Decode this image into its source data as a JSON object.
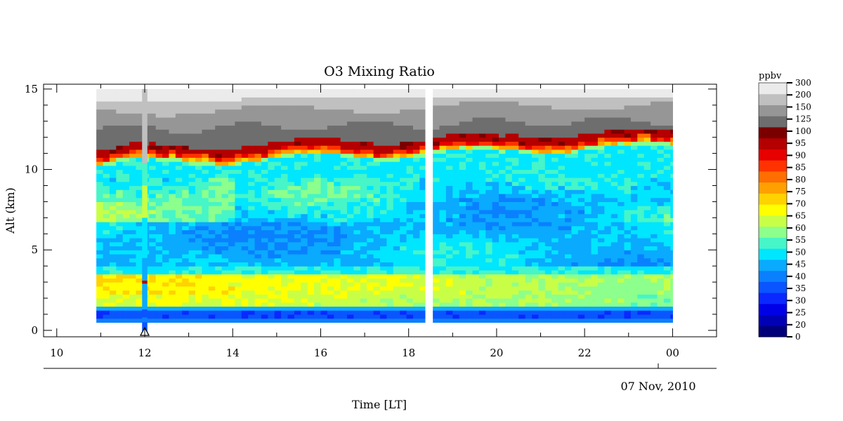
{
  "chart_data": {
    "type": "heatmap",
    "title": "O3 Mixing Ratio",
    "xlabel": "Time [LT]",
    "ylabel": "Alt (km)",
    "date_label": "07 Nov, 2010",
    "x_ticks": [
      "10",
      "12",
      "14",
      "16",
      "18",
      "20",
      "22",
      "00"
    ],
    "x_range_hours": [
      9.7,
      25.0
    ],
    "y_ticks": [
      "0",
      "5",
      "10",
      "15"
    ],
    "ylim": [
      -0.4,
      15.3
    ],
    "data_time_range_hours": [
      10.9,
      24.0
    ],
    "data_alt_range_km": [
      0.5,
      15.0
    ],
    "data_gap_hours": [
      18.38,
      18.55
    ],
    "launch_marker_hour": 12.0,
    "colorbar": {
      "unit": "ppbv",
      "levels": [
        "0",
        "20",
        "25",
        "30",
        "35",
        "40",
        "45",
        "50",
        "55",
        "60",
        "65",
        "70",
        "75",
        "80",
        "85",
        "90",
        "95",
        "100",
        "125",
        "150",
        "200",
        "300"
      ],
      "colors": [
        "#00007a",
        "#0000b4",
        "#0000e6",
        "#0a28ff",
        "#0a55ff",
        "#0a80ff",
        "#0aaaff",
        "#00e6ff",
        "#46f5c8",
        "#8cff8c",
        "#c8ff46",
        "#ffff00",
        "#ffd200",
        "#ffa000",
        "#ff6e00",
        "#ff3200",
        "#e60000",
        "#b40000",
        "#7a0000",
        "#6e6e6e",
        "#969696",
        "#c0c0c0",
        "#ebebeb"
      ]
    },
    "profile_summary": {
      "description_levels_km": [
        0.5,
        1.0,
        1.5,
        2.0,
        3.0,
        4.0,
        6.5,
        8.0,
        10.0,
        11.0,
        12.5,
        13.5,
        15.0
      ],
      "early_ppbv": [
        38,
        32,
        45,
        60,
        70,
        50,
        40,
        60,
        48,
        95,
        125,
        200,
        300
      ],
      "late_ppbv": [
        35,
        32,
        48,
        58,
        55,
        45,
        42,
        45,
        48,
        75,
        125,
        200,
        300
      ]
    }
  }
}
